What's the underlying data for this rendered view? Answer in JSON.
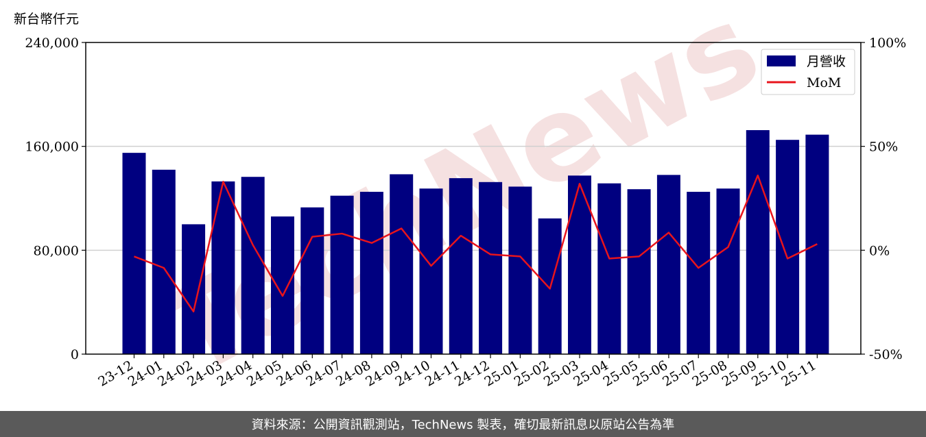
{
  "chart_data": {
    "type": "bar",
    "ylabel": "新台幣仟元",
    "categories": [
      "23-12",
      "24-01",
      "24-02",
      "24-03",
      "24-04",
      "24-05",
      "24-06",
      "24-07",
      "24-08",
      "24-09",
      "24-10",
      "24-11",
      "24-12",
      "25-01",
      "25-02",
      "25-03",
      "25-04",
      "25-05",
      "25-06",
      "25-07",
      "25-08",
      "25-09",
      "25-10",
      "25-11"
    ],
    "series": [
      {
        "name": "月營收",
        "axis": "left",
        "chart_type": "bar",
        "color": "#000080",
        "values": [
          155000,
          142000,
          100000,
          133000,
          136500,
          106000,
          113000,
          122000,
          125000,
          138500,
          127500,
          135500,
          132500,
          129000,
          104500,
          137500,
          131500,
          127000,
          138000,
          125000,
          127500,
          172500,
          165000,
          169000
        ]
      },
      {
        "name": "MoM",
        "axis": "right",
        "chart_type": "line",
        "color": "#e8141c",
        "values": [
          -3,
          -8.5,
          -29.5,
          33,
          2.5,
          -22,
          6.5,
          8,
          3.5,
          10.5,
          -7.5,
          7,
          -2,
          -3,
          -18.5,
          32,
          -4,
          -3,
          8.5,
          -8.5,
          1.5,
          36,
          -4,
          3
        ]
      }
    ],
    "left_axis": {
      "ylim": [
        0,
        240000
      ],
      "ticks": [
        "0",
        "80,000",
        "160,000",
        "240,000"
      ]
    },
    "right_axis": {
      "ylim": [
        -50,
        100
      ],
      "ticks": [
        "-50%",
        "0%",
        "50%",
        "100%"
      ]
    },
    "grid": "horizontal",
    "legend": "top-right",
    "watermark": "TechNews"
  },
  "footer": {
    "text": "資料來源：公開資訊觀測站，TechNews 製表，確切最新訊息以原站公告為準"
  }
}
